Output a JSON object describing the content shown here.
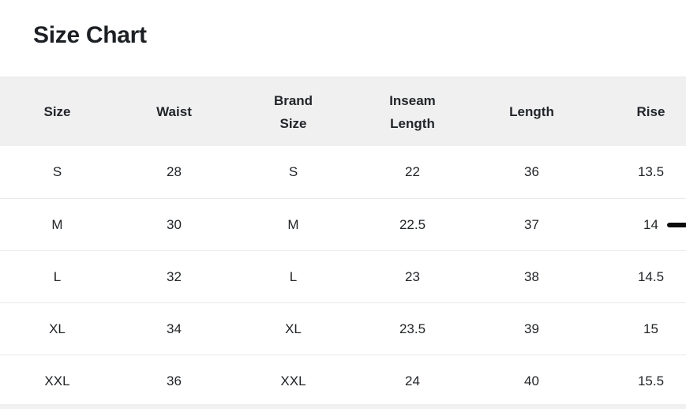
{
  "title": "Size Chart",
  "table": {
    "headers": [
      "Size",
      "Waist",
      "Brand Size",
      "Inseam Length",
      "Length",
      "Rise"
    ],
    "rows": [
      {
        "size": "S",
        "waist": "28",
        "brand_size": "S",
        "inseam_length": "22",
        "length": "36",
        "rise": "13.5"
      },
      {
        "size": "M",
        "waist": "30",
        "brand_size": "M",
        "inseam_length": "22.5",
        "length": "37",
        "rise": "14"
      },
      {
        "size": "L",
        "waist": "32",
        "brand_size": "L",
        "inseam_length": "23",
        "length": "38",
        "rise": "14.5"
      },
      {
        "size": "XL",
        "waist": "34",
        "brand_size": "XL",
        "inseam_length": "23.5",
        "length": "39",
        "rise": "15"
      },
      {
        "size": "XXL",
        "waist": "36",
        "brand_size": "XXL",
        "inseam_length": "24",
        "length": "40",
        "rise": "15.5"
      }
    ]
  },
  "colors": {
    "header_background": "#f0f0f0",
    "row_divider": "#e9e9e9",
    "text": "#212427",
    "marker": "#0c0c0c",
    "bottom_strip": "#f1f1f1"
  }
}
